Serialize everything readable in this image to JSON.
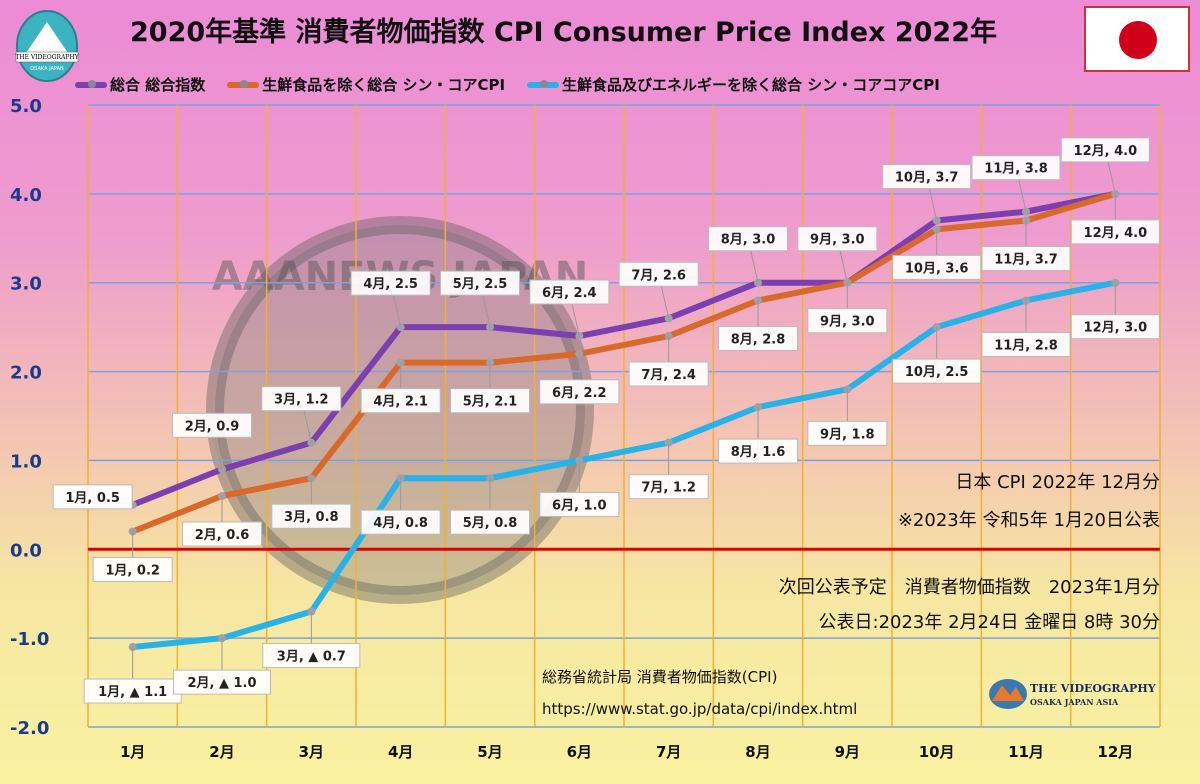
{
  "title": "2020年基準 消費者物価指数 CPI Consumer Price Index 2022年",
  "flag": "japan-flag",
  "logo_top_left": {
    "lines": [
      "THE VIDEOGRAPHY",
      "OSAKA JAPAN"
    ]
  },
  "logo_bottom_right": {
    "lines": [
      "THE VIDEOGRAPHY",
      "OSAKA JAPAN ASIA"
    ]
  },
  "watermark": "AAANEWS JAPAN",
  "notes": {
    "line1": "日本 CPI 2022年 12月分",
    "line2": "※2023年 令和5年 1月20日公表",
    "line3": "次回公表予定　消費者物価指数　2023年1月分",
    "line4": "公表日:2023年 2月24日 金曜日 8時 30分"
  },
  "source": {
    "name": "総務省統計局 消費者物価指数(CPI)",
    "url": "https://www.stat.go.jp/data/cpi/index.html"
  },
  "chart_data": {
    "type": "line",
    "title": "2020年基準 消費者物価指数 CPI Consumer Price Index 2022年",
    "categories": [
      "1月",
      "2月",
      "3月",
      "4月",
      "5月",
      "6月",
      "7月",
      "8月",
      "9月",
      "10月",
      "11月",
      "12月"
    ],
    "ylim": [
      -2.0,
      5.0
    ],
    "yticks": [
      "5.0",
      "4.0",
      "3.0",
      "2.0",
      "1.0",
      "0.0",
      "-1.0",
      "-2.0"
    ],
    "grid": true,
    "legend": "top",
    "zero_line_color": "#e00000",
    "series": [
      {
        "name": "総合 総合指数",
        "color": "#7b3fb0",
        "values": [
          0.5,
          0.9,
          1.2,
          2.5,
          2.5,
          2.4,
          2.6,
          3.0,
          3.0,
          3.7,
          3.8,
          4.0
        ],
        "labels": [
          "1月, 0.5",
          "2月, 0.9",
          "3月, 1.2",
          "4月, 2.5",
          "5月, 2.5",
          "6月, 2.4",
          "7月, 2.6",
          "8月, 3.0",
          "9月, 3.0",
          "10月, 3.7",
          "11月, 3.8",
          "12月, 4.0"
        ]
      },
      {
        "name": "生鮮食品を除く総合 シン・コアCPI",
        "color": "#d9692a",
        "values": [
          0.2,
          0.6,
          0.8,
          2.1,
          2.1,
          2.2,
          2.4,
          2.8,
          3.0,
          3.6,
          3.7,
          4.0
        ],
        "labels": [
          "1月, 0.2",
          "2月, 0.6",
          "3月, 0.8",
          "4月, 2.1",
          "5月, 2.1",
          "6月, 2.2",
          "7月, 2.4",
          "8月, 2.8",
          "9月, 3.0",
          "10月, 3.6",
          "11月, 3.7",
          "12月, 4.0"
        ]
      },
      {
        "name": "生鮮食品及びエネルギーを除く総合 シン・コアコアCPI",
        "color": "#29b2e8",
        "values": [
          -1.1,
          -1.0,
          -0.7,
          0.8,
          0.8,
          1.0,
          1.2,
          1.6,
          1.8,
          2.5,
          2.8,
          3.0
        ],
        "labels": [
          "1月, ▲ 1.1",
          "2月, ▲ 1.0",
          "3月, ▲ 0.7",
          "4月, 0.8",
          "5月, 0.8",
          "6月, 1.0",
          "7月, 1.2",
          "8月, 1.6",
          "9月, 1.8",
          "10月, 2.5",
          "11月, 2.8",
          "12月, 3.0"
        ]
      }
    ]
  }
}
